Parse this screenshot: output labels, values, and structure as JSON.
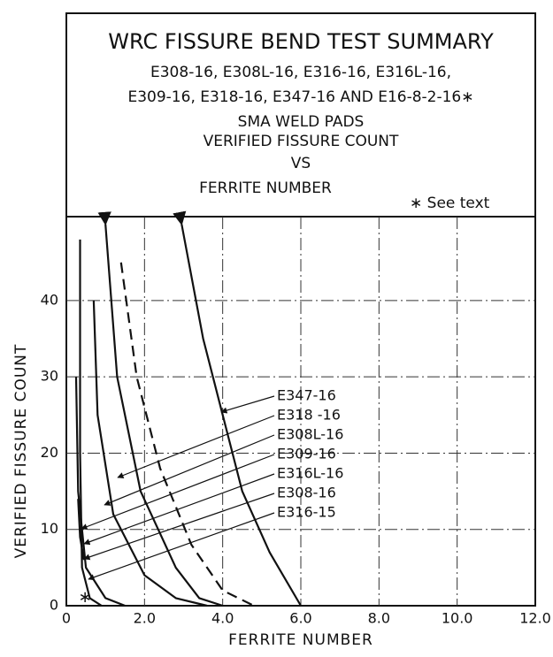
{
  "chart_data": {
    "type": "line",
    "title": "WRC FISSURE BEND TEST SUMMARY",
    "subtitle": [
      "E308-16, E308L-16, E316-16, E316L-16,",
      "E309-16, E318-16, E347-16 AND E16-8-2-16∗",
      "SMA WELD PADS",
      "VERIFIED FISSURE COUNT",
      "VS",
      "FERRITE NUMBER"
    ],
    "note": "∗ See text",
    "x_label": "FERRITE NUMBER",
    "y_label": "VERIFIED FISSURE COUNT",
    "xlim": [
      0,
      12
    ],
    "ylim": [
      0,
      51
    ],
    "xticks": [
      0,
      {
        "value": 2,
        "label": "2.0"
      },
      {
        "value": 4,
        "label": "4.0"
      },
      {
        "value": 6,
        "label": "6.0"
      },
      {
        "value": 8,
        "label": "8.0"
      },
      {
        "value": 10,
        "label": "10.0"
      },
      {
        "value": 12,
        "label": "12.0"
      }
    ],
    "yticks": [
      0,
      10,
      20,
      30,
      40
    ],
    "grid": true,
    "series": [
      {
        "name": "E347-16",
        "color": "#111111",
        "dashed": false,
        "arrow": true,
        "x": [
          2.95,
          3.5,
          4.0,
          4.5,
          5.2,
          6.0
        ],
        "values": [
          50,
          35,
          25,
          15,
          7,
          0
        ]
      },
      {
        "name": "E318 -16",
        "color": "#111111",
        "dashed": true,
        "arrow": false,
        "x": [
          1.4,
          1.8,
          2.4,
          3.2,
          4.0,
          4.8
        ],
        "values": [
          45,
          30,
          18,
          8,
          2,
          0
        ]
      },
      {
        "name": "E308L-16",
        "color": "#111111",
        "dashed": false,
        "arrow": true,
        "x": [
          1.0,
          1.3,
          1.9,
          2.8,
          3.4,
          4.0
        ],
        "values": [
          50,
          30,
          15,
          5,
          1,
          0
        ]
      },
      {
        "name": "E309-16",
        "color": "#111111",
        "dashed": false,
        "arrow": false,
        "x": [
          0.7,
          0.8,
          1.2,
          2.0,
          2.8,
          3.6
        ],
        "values": [
          40,
          25,
          12,
          4,
          1,
          0
        ]
      },
      {
        "name": "E316L-16",
        "color": "#111111",
        "dashed": false,
        "arrow": false,
        "x": [
          0.25,
          0.3,
          0.5,
          1.0,
          1.5
        ],
        "values": [
          30,
          15,
          5,
          1,
          0
        ]
      },
      {
        "name": "E308-16",
        "color": "#111111",
        "dashed": false,
        "arrow": false,
        "x": [
          0.35,
          0.35,
          0.4,
          0.6,
          0.9
        ],
        "values": [
          48,
          20,
          5,
          1,
          0
        ]
      },
      {
        "name": "E316-15",
        "color": "#111111",
        "dashed": false,
        "arrow": false,
        "x": [
          0.3,
          0.35,
          0.45
        ],
        "values": [
          14,
          9,
          6
        ]
      }
    ]
  }
}
